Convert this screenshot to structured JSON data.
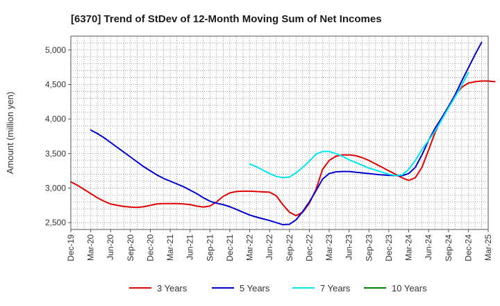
{
  "chart_data": {
    "type": "line",
    "title": "[6370]  Trend of StDev of 12-Month Moving Sum of Net Incomes",
    "xlabel": "",
    "ylabel": "Amount (million yen)",
    "ylim": [
      2400,
      5200
    ],
    "yticks": [
      2500,
      3000,
      3500,
      4000,
      4500,
      5000
    ],
    "ytick_labels": [
      "2,500",
      "3,000",
      "3,500",
      "4,000",
      "4,500",
      "5,000"
    ],
    "xtick_labels": [
      "Dec-19",
      "Mar-20",
      "Jun-20",
      "Sep-20",
      "Dec-20",
      "Mar-21",
      "Jun-21",
      "Sep-21",
      "Dec-21",
      "Mar-22",
      "Jun-22",
      "Sep-22",
      "Dec-22",
      "Mar-23",
      "Jun-23",
      "Sep-23",
      "Dec-23",
      "Mar-24",
      "Jun-24",
      "Sep-24",
      "Dec-24",
      "Mar-25"
    ],
    "grid": true,
    "legend_position": "bottom",
    "series": [
      {
        "name": "3 Years",
        "color": "#e00000",
        "start": "Dec-19",
        "values": [
          3090,
          3040,
          2980,
          2920,
          2860,
          2810,
          2770,
          2750,
          2735,
          2725,
          2720,
          2730,
          2750,
          2770,
          2775,
          2775,
          2775,
          2770,
          2760,
          2740,
          2725,
          2740,
          2800,
          2880,
          2930,
          2950,
          2955,
          2955,
          2950,
          2945,
          2940,
          2890,
          2760,
          2650,
          2600,
          2650,
          2780,
          2980,
          3270,
          3400,
          3460,
          3480,
          3480,
          3470,
          3440,
          3400,
          3350,
          3300,
          3250,
          3200,
          3150,
          3110,
          3150,
          3300,
          3550,
          3810,
          4010,
          4180,
          4340,
          4460,
          4520,
          4540,
          4550,
          4550,
          4540
        ]
      },
      {
        "name": "5 Years",
        "color": "#0000cc",
        "start": "Mar-20",
        "values": [
          3840,
          3790,
          3730,
          3660,
          3590,
          3520,
          3450,
          3380,
          3310,
          3250,
          3190,
          3140,
          3100,
          3060,
          3020,
          2970,
          2920,
          2860,
          2810,
          2780,
          2760,
          2730,
          2690,
          2650,
          2610,
          2580,
          2555,
          2530,
          2500,
          2470,
          2475,
          2540,
          2660,
          2800,
          2960,
          3130,
          3210,
          3235,
          3240,
          3240,
          3230,
          3220,
          3210,
          3200,
          3190,
          3185,
          3180,
          3180,
          3210,
          3300,
          3480,
          3690,
          3870,
          4020,
          4180,
          4350,
          4550,
          4740,
          4930,
          5110
        ]
      },
      {
        "name": "7 Years",
        "color": "#00e5ee",
        "start": "Mar-22",
        "values": [
          3350,
          3310,
          3260,
          3210,
          3170,
          3150,
          3160,
          3220,
          3300,
          3390,
          3490,
          3530,
          3530,
          3500,
          3460,
          3410,
          3370,
          3330,
          3290,
          3260,
          3230,
          3200,
          3180,
          3190,
          3270,
          3400,
          3560,
          3690,
          3830,
          3990,
          4160,
          4320,
          4490,
          4670
        ]
      },
      {
        "name": "10 Years",
        "color": "#008000",
        "start": "",
        "values": []
      }
    ]
  }
}
